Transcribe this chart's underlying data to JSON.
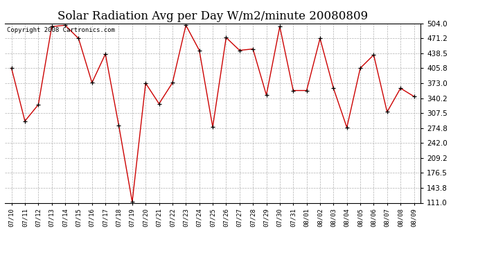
{
  "title": "Solar Radiation Avg per Day W/m2/minute 20080809",
  "copyright_text": "Copyright 2008 Cartronics.com",
  "line_color": "#cc0000",
  "marker_color": "#000000",
  "background_color": "#ffffff",
  "plot_bg_color": "#ffffff",
  "grid_color": "#b0b0b0",
  "grid_style": "--",
  "dates": [
    "07/10",
    "07/11",
    "07/12",
    "07/13",
    "07/14",
    "07/15",
    "07/16",
    "07/17",
    "07/18",
    "07/19",
    "07/20",
    "07/21",
    "07/22",
    "07/23",
    "07/24",
    "07/25",
    "07/26",
    "07/27",
    "07/28",
    "07/29",
    "07/30",
    "07/31",
    "08/01",
    "08/02",
    "08/03",
    "08/04",
    "08/05",
    "08/06",
    "08/07",
    "08/08",
    "08/09"
  ],
  "values": [
    406,
    290,
    326,
    497,
    500,
    471,
    374,
    437,
    280,
    113,
    373,
    328,
    374,
    500,
    445,
    277,
    473,
    445,
    448,
    347,
    497,
    357,
    357,
    471,
    362,
    276,
    406,
    435,
    310,
    362,
    344
  ],
  "ylim": [
    111.0,
    504.0
  ],
  "yticks": [
    111.0,
    143.8,
    176.5,
    209.2,
    242.0,
    274.8,
    307.5,
    340.2,
    373.0,
    405.8,
    438.5,
    471.2,
    504.0
  ],
  "ylabel_fontsize": 7.5,
  "xlabel_fontsize": 6.5,
  "title_fontsize": 12,
  "copyright_fontsize": 6.5,
  "fig_width": 6.9,
  "fig_height": 3.75,
  "dpi": 100
}
